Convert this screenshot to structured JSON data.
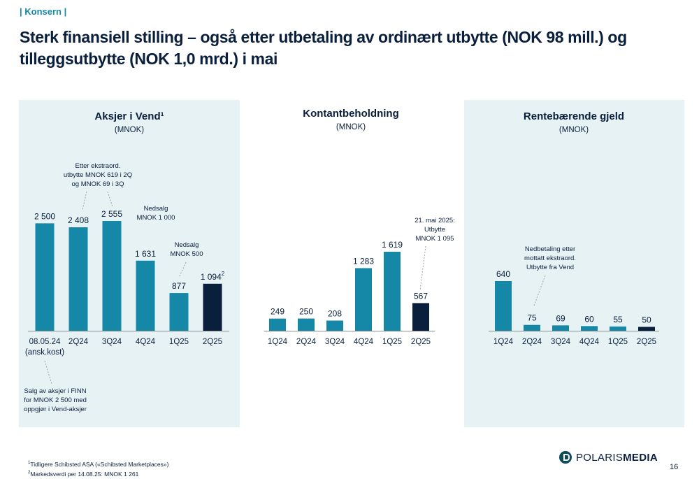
{
  "header": {
    "section_tag": "| Konsern |",
    "title": "Sterk finansiell stilling – også etter utbetaling av ordinært utbytte (NOK 98 mill.) og tilleggsutbytte (NOK 1,0 mrd.) i mai"
  },
  "colors": {
    "bar_primary": "#1488a6",
    "bar_highlight": "#0a1f3c",
    "panel_background": "#e6f2f4",
    "text": "#0a1f3c"
  },
  "chart_data": [
    {
      "type": "bar",
      "title": "Aksjer i Vend¹",
      "subtitle": "(MNOK)",
      "categories": [
        "08.05.24\n(ansk.kost)",
        "2Q24",
        "3Q24",
        "4Q24",
        "1Q25",
        "2Q25"
      ],
      "values": [
        2500,
        2408,
        2555,
        1631,
        877,
        1094
      ],
      "value_labels": [
        "2 500",
        "2 408",
        "2 555",
        "1 631",
        "877",
        "1 094"
      ],
      "value_superscripts": [
        "",
        "",
        "",
        "",
        "",
        "2"
      ],
      "highlight_index": 5,
      "ylim": [
        0,
        2555
      ],
      "annotations": [
        "Etter ekstraord.\nutbytte MNOK 619 i 2Q\nog MNOK 69 i 3Q",
        "Nedsalg\nMNOK 1 000",
        "Nedsalg\nMNOK 500",
        "Salg av aksjer i FINN\nfor MNOK 2 500 med\noppgjør i Vend-aksjer"
      ]
    },
    {
      "type": "bar",
      "title": "Kontantbeholdning",
      "subtitle": "(MNOK)",
      "categories": [
        "1Q24",
        "2Q24",
        "3Q24",
        "4Q24",
        "1Q25",
        "2Q25"
      ],
      "values": [
        249,
        250,
        208,
        1283,
        1619,
        567
      ],
      "value_labels": [
        "249",
        "250",
        "208",
        "1 283",
        "1 619",
        "567"
      ],
      "highlight_index": 5,
      "ylim": [
        0,
        1619
      ],
      "annotations": [
        "21. mai 2025:\nUtbytte\nMNOK 1 095"
      ]
    },
    {
      "type": "bar",
      "title": "Rentebærende gjeld",
      "subtitle": "(MNOK)",
      "categories": [
        "1Q24",
        "2Q24",
        "3Q24",
        "4Q24",
        "1Q25",
        "2Q25"
      ],
      "values": [
        640,
        75,
        69,
        60,
        55,
        50
      ],
      "value_labels": [
        "640",
        "75",
        "69",
        "60",
        "55",
        "50"
      ],
      "highlight_index": 5,
      "ylim": [
        0,
        640
      ],
      "annotations": [
        "Nedbetaling etter\nmottatt ekstraord.\nUtbytte fra Vend"
      ]
    }
  ],
  "footnotes": [
    {
      "mark": "1",
      "text": "Tidligere Schibsted ASA («Schibsted Marketplaces»)"
    },
    {
      "mark": "2",
      "text": "Markedsverdi per 14.08.25: MNOK 1 261"
    }
  ],
  "logo": {
    "part1": "POLARIS",
    "part2": "MEDIA"
  },
  "page_number": "16"
}
